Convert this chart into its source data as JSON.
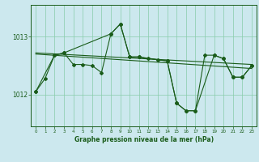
{
  "background_color": "#cce8ee",
  "grid_color": "#88ccaa",
  "line_color": "#1a5c1a",
  "title": "Graphe pression niveau de la mer (hPa)",
  "xlim": [
    -0.5,
    23.5
  ],
  "ylim": [
    1011.45,
    1013.55
  ],
  "yticks": [
    1012,
    1013
  ],
  "xticks": [
    0,
    1,
    2,
    3,
    4,
    5,
    6,
    7,
    8,
    9,
    10,
    11,
    12,
    13,
    14,
    15,
    16,
    17,
    18,
    19,
    20,
    21,
    22,
    23
  ],
  "series_hourly_x": [
    0,
    1,
    2,
    3,
    4,
    5,
    6,
    7,
    8,
    9,
    10,
    11,
    12,
    13,
    14,
    15,
    16,
    17,
    18,
    19,
    20,
    21,
    22,
    23
  ],
  "series_hourly_y": [
    1012.05,
    1012.28,
    1012.68,
    1012.72,
    1012.52,
    1012.52,
    1012.5,
    1012.38,
    1013.05,
    1013.22,
    1012.65,
    1012.65,
    1012.62,
    1012.6,
    1012.58,
    1011.85,
    1011.72,
    1011.72,
    1012.68,
    1012.68,
    1012.62,
    1012.3,
    1012.3,
    1012.5
  ],
  "series_sparse_x": [
    0,
    2,
    3,
    8,
    9,
    10,
    11,
    14,
    15,
    16,
    17,
    19,
    20,
    21,
    22,
    23
  ],
  "series_sparse_y": [
    1012.05,
    1012.68,
    1012.72,
    1013.05,
    1013.22,
    1012.65,
    1012.65,
    1012.58,
    1011.85,
    1011.72,
    1011.72,
    1012.68,
    1012.62,
    1012.3,
    1012.3,
    1012.5
  ],
  "trend1_x": [
    0,
    23
  ],
  "trend1_y": [
    1012.72,
    1012.52
  ],
  "trend2_x": [
    0,
    23
  ],
  "trend2_y": [
    1012.7,
    1012.45
  ]
}
